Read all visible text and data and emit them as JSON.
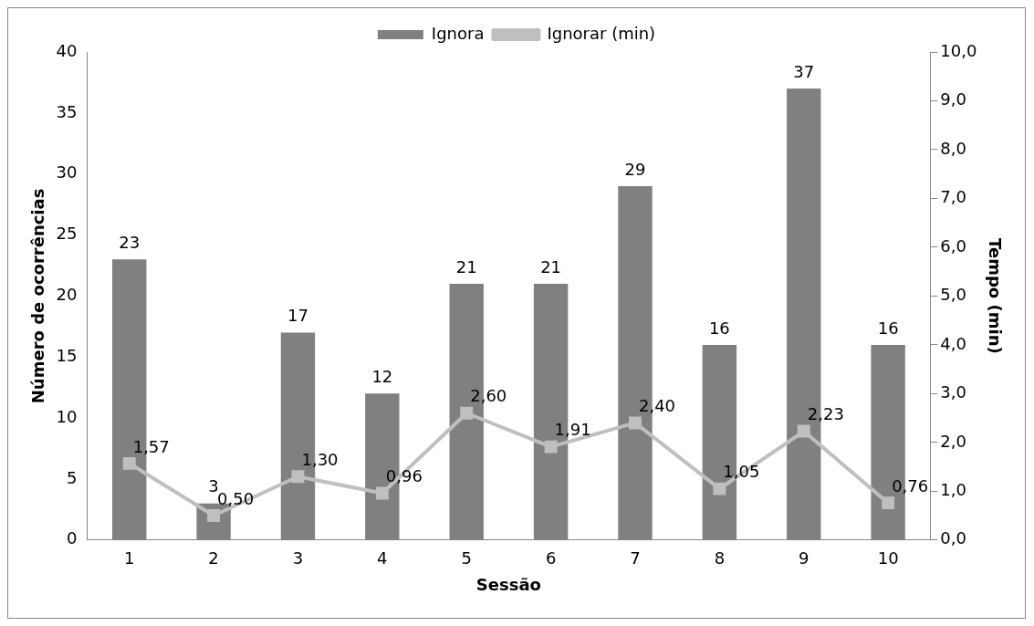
{
  "chart_data": {
    "type": "bar",
    "xlabel": "Sessão",
    "ylabel": "Número de ocorrências",
    "y2label": "Tempo (min)",
    "categories": [
      "1",
      "2",
      "3",
      "4",
      "5",
      "6",
      "7",
      "8",
      "9",
      "10"
    ],
    "series": [
      {
        "name": "Ignora",
        "color": "#808080",
        "values": [
          23,
          3,
          17,
          12,
          21,
          21,
          29,
          16,
          37,
          16
        ],
        "value_labels": [
          "23",
          "3",
          "17",
          "12",
          "21",
          "21",
          "29",
          "16",
          "37",
          "16"
        ]
      },
      {
        "name": "Ignorar (min)",
        "type": "line",
        "axis": "y2",
        "color": "#bfbfbf",
        "marker": "square",
        "values": [
          1.57,
          0.5,
          1.3,
          0.96,
          2.6,
          1.91,
          2.4,
          1.05,
          2.23,
          0.76
        ],
        "value_labels": [
          "1,57",
          "0,50",
          "1,30",
          "0,96",
          "2,60",
          "1,91",
          "2,40",
          "1,05",
          "2,23",
          "0,76"
        ]
      }
    ],
    "ylim": [
      0,
      40
    ],
    "yticks": [
      0,
      5,
      10,
      15,
      20,
      25,
      30,
      35,
      40
    ],
    "y2lim": [
      0,
      10
    ],
    "y2ticks": [
      {
        "value": 0,
        "label": "0,0"
      },
      {
        "value": 1,
        "label": "1,0"
      },
      {
        "value": 2,
        "label": "2,0"
      },
      {
        "value": 3,
        "label": "3,0"
      },
      {
        "value": 4,
        "label": "4,0"
      },
      {
        "value": 5,
        "label": "5,0"
      },
      {
        "value": 6,
        "label": "6,0"
      },
      {
        "value": 7,
        "label": "7,0"
      },
      {
        "value": 8,
        "label": "8,0"
      },
      {
        "value": 9,
        "label": "9,0"
      },
      {
        "value": 10,
        "label": "10,0"
      }
    ],
    "grid": false,
    "legend": "top"
  }
}
